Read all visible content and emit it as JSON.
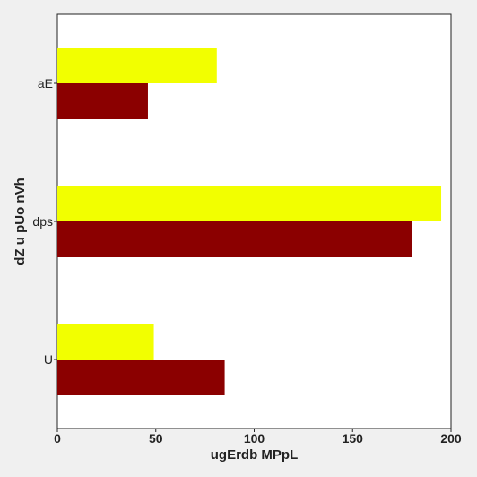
{
  "chart_data": {
    "type": "bar",
    "orientation": "horizontal",
    "categories": [
      "aE",
      "dps",
      "U"
    ],
    "series": [
      {
        "values": [
          81,
          195,
          49
        ],
        "color": "#f2ff00"
      },
      {
        "values": [
          46,
          180,
          85
        ],
        "color": "#8b0000"
      }
    ],
    "xlabel": "ugErdb MPpL",
    "ylabel": "dZ u  pUo nVh",
    "xlim": [
      0,
      200
    ],
    "xticks": [
      0,
      50,
      100,
      150,
      200
    ],
    "grid": false,
    "legend": "none"
  }
}
